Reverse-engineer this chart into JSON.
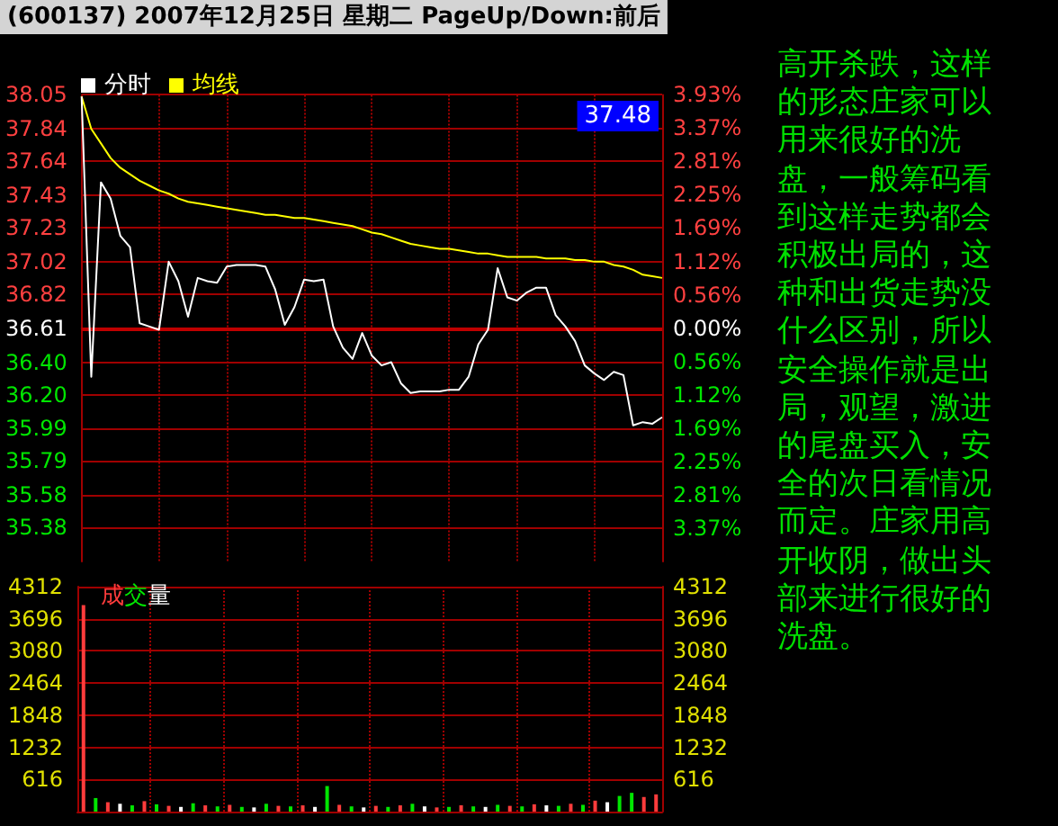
{
  "chart_data": [
    {
      "type": "line",
      "title": "(600137) 2007年12月25日 星期二 PageUp/Down:前后",
      "categories": [
        null,
        null,
        null,
        null,
        null,
        null,
        null,
        null,
        null,
        null,
        null,
        null,
        null,
        null,
        null,
        null,
        null,
        null,
        null,
        null,
        null,
        null,
        null,
        null,
        null,
        null,
        null,
        null,
        null,
        null,
        null,
        null,
        null,
        null,
        null,
        null,
        null,
        null,
        null,
        null,
        null,
        null,
        null,
        null,
        null,
        null,
        null,
        null,
        null,
        null,
        null,
        null,
        null,
        null,
        null,
        null,
        null,
        null,
        null,
        null,
        null
      ],
      "ylim": [
        35.17,
        38.05
      ],
      "yticks": [
        35.38,
        35.58,
        35.79,
        35.99,
        {
          "value": 36.2,
          "label": "36.20"
        },
        {
          "value": 36.4,
          "label": "36.40"
        },
        36.61,
        36.82,
        37.02,
        37.23,
        37.43,
        37.64,
        37.84,
        38.05
      ],
      "y2lim": [
        -3.93,
        3.93
      ],
      "y2ticks": [
        {
          "value": -3.37,
          "label": "3.37%"
        },
        {
          "value": -2.81,
          "label": "2.81%"
        },
        {
          "value": -2.25,
          "label": "2.25%"
        },
        {
          "value": -1.69,
          "label": "1.69%"
        },
        {
          "value": -1.12,
          "label": "1.12%"
        },
        {
          "value": -0.56,
          "label": "0.56%"
        },
        {
          "value": 0,
          "label": "0.00%"
        },
        {
          "value": 0.56,
          "label": "0.56%"
        },
        {
          "value": 1.12,
          "label": "1.12%"
        },
        {
          "value": 1.69,
          "label": "1.69%"
        },
        {
          "value": 2.25,
          "label": "2.25%"
        },
        {
          "value": 2.81,
          "label": "2.81%"
        },
        {
          "value": 3.37,
          "label": "3.37%"
        },
        {
          "value": 3.93,
          "label": "3.93%"
        }
      ],
      "grid": true,
      "legend": "top left",
      "marker": "none",
      "line_style": "solid",
      "ref_lines": [
        {
          "axis": "y",
          "value": 36.61
        }
      ],
      "annotations": [
        "37.48"
      ],
      "series": [
        {
          "name": "分时",
          "color": "#ffffff",
          "values": [
            38.04,
            36.31,
            37.51,
            37.41,
            37.18,
            37.11,
            36.64,
            36.62,
            36.6,
            37.02,
            36.9,
            36.68,
            36.92,
            36.9,
            36.89,
            36.99,
            37.0,
            37.0,
            37.0,
            36.99,
            36.85,
            36.63,
            36.74,
            36.91,
            36.9,
            36.91,
            36.62,
            36.49,
            36.42,
            36.58,
            36.44,
            36.38,
            36.4,
            36.27,
            36.21,
            36.22,
            36.22,
            36.22,
            36.23,
            36.23,
            36.31,
            36.51,
            36.6,
            36.98,
            36.8,
            36.78,
            36.83,
            36.86,
            36.86,
            36.69,
            36.62,
            36.53,
            36.38,
            36.33,
            36.29,
            36.34,
            36.32,
            36.01,
            36.03,
            36.02,
            36.06
          ]
        },
        {
          "name": "均线",
          "color": "#ffff00",
          "values": [
            38.04,
            37.84,
            37.75,
            37.66,
            37.6,
            37.56,
            37.52,
            37.49,
            37.46,
            37.44,
            37.41,
            37.39,
            37.38,
            37.37,
            37.36,
            37.35,
            37.34,
            37.33,
            37.32,
            37.31,
            37.31,
            37.3,
            37.29,
            37.29,
            37.28,
            37.27,
            37.26,
            37.25,
            37.24,
            37.22,
            37.2,
            37.19,
            37.17,
            37.15,
            37.13,
            37.12,
            37.11,
            37.1,
            37.1,
            37.09,
            37.08,
            37.07,
            37.07,
            37.06,
            37.05,
            37.05,
            37.05,
            37.05,
            37.04,
            37.04,
            37.04,
            37.03,
            37.03,
            37.02,
            37.02,
            37.0,
            36.99,
            36.97,
            36.94,
            36.93,
            36.92
          ]
        }
      ]
    },
    {
      "type": "bar",
      "title": "成交量",
      "categories": [
        null,
        null,
        null,
        null,
        null,
        null,
        null,
        null,
        null,
        null,
        null,
        null,
        null,
        null,
        null,
        null,
        null,
        null,
        null,
        null,
        null,
        null,
        null,
        null,
        null,
        null,
        null,
        null,
        null,
        null,
        null,
        null,
        null,
        null,
        null,
        null,
        null,
        null,
        null,
        null,
        null,
        null,
        null,
        null,
        null,
        null,
        null,
        null
      ],
      "values": [
        3960,
        260,
        180,
        150,
        120,
        200,
        140,
        110,
        90,
        160,
        120,
        100,
        130,
        90,
        80,
        150,
        110,
        100,
        120,
        90,
        490,
        130,
        100,
        80,
        110,
        90,
        120,
        150,
        100,
        80,
        90,
        120,
        100,
        90,
        130,
        110,
        100,
        140,
        120,
        110,
        150,
        130,
        210,
        180,
        300,
        360,
        280,
        330
      ],
      "colors": [
        "#ff3c3c",
        "#00e600",
        "#ff3c3c",
        "#ffffff",
        "#00e600",
        "#ff3c3c",
        "#00e600",
        "#ff3c3c",
        "#ffffff",
        "#00e600",
        "#ff3c3c",
        "#00e600",
        "#ff3c3c",
        "#00e600",
        "#ffffff",
        "#00e600",
        "#ff3c3c",
        "#00e600",
        "#ff3c3c",
        "#ffffff",
        "#00e600",
        "#ff3c3c",
        "#00e600",
        "#ffffff",
        "#ff3c3c",
        "#00e600",
        "#ff3c3c",
        "#00e600",
        "#ffffff",
        "#ff3c3c",
        "#00e600",
        "#ff3c3c",
        "#00e600",
        "#ffffff",
        "#00e600",
        "#ff3c3c",
        "#00e600",
        "#ff3c3c",
        "#ffffff",
        "#00e600",
        "#ff3c3c",
        "#00e600",
        "#ff3c3c",
        "#ffffff",
        "#00e600",
        "#00e600",
        "#ff3c3c",
        "#ff3c3c"
      ],
      "ylim": [
        0,
        4312
      ],
      "yticks": [
        616,
        1232,
        1848,
        2464,
        3080,
        3696,
        4312
      ],
      "y2lim": [
        0,
        4312
      ],
      "y2ticks": [
        616,
        1232,
        1848,
        2464,
        3080,
        3696,
        4312
      ],
      "grid": true
    },
    {
      "type": "other",
      "annotations": [
        "高开杀跌，这样的形态庄家可以用来很好的洗盘，一般筹码看到这样走势都会积极出局的，这种和出货走势没什么区别，所以安全操作就是出局，观望，激进的尾盘买入，安全的次日看情况而定。庄家用高开收阴，做出头部来进行很好的洗盘。"
      ]
    }
  ]
}
